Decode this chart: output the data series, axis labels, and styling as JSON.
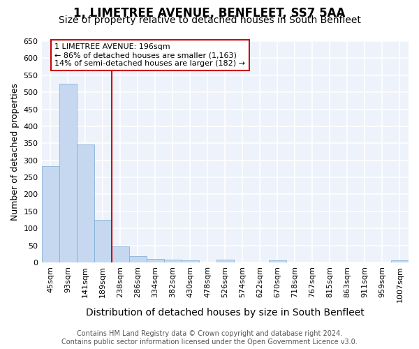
{
  "title1": "1, LIMETREE AVENUE, BENFLEET, SS7 5AA",
  "title2": "Size of property relative to detached houses in South Benfleet",
  "xlabel": "Distribution of detached houses by size in South Benfleet",
  "ylabel": "Number of detached properties",
  "categories": [
    "45sqm",
    "93sqm",
    "141sqm",
    "189sqm",
    "238sqm",
    "286sqm",
    "334sqm",
    "382sqm",
    "430sqm",
    "478sqm",
    "526sqm",
    "574sqm",
    "622sqm",
    "670sqm",
    "718sqm",
    "767sqm",
    "815sqm",
    "863sqm",
    "911sqm",
    "959sqm",
    "1007sqm"
  ],
  "values": [
    283,
    524,
    347,
    124,
    48,
    19,
    10,
    8,
    5,
    0,
    8,
    0,
    0,
    5,
    0,
    0,
    0,
    0,
    0,
    0,
    5
  ],
  "bar_color": "#c5d8f0",
  "bar_edge_color": "#7aaad4",
  "vline_color": "#cc0000",
  "vline_x": 3.5,
  "annotation_line1": "1 LIMETREE AVENUE: 196sqm",
  "annotation_line2": "← 86% of detached houses are smaller (1,163)",
  "annotation_line3": "14% of semi-detached houses are larger (182) →",
  "annotation_box_color": "#ffffff",
  "annotation_box_edge": "#cc0000",
  "ylim": [
    0,
    650
  ],
  "yticks": [
    0,
    50,
    100,
    150,
    200,
    250,
    300,
    350,
    400,
    450,
    500,
    550,
    600,
    650
  ],
  "footer1": "Contains HM Land Registry data © Crown copyright and database right 2024.",
  "footer2": "Contains public sector information licensed under the Open Government Licence v3.0.",
  "bg_color": "#eef2fb",
  "grid_color": "#ffffff",
  "fig_bg_color": "#ffffff",
  "title1_fontsize": 12,
  "title2_fontsize": 10,
  "xlabel_fontsize": 10,
  "ylabel_fontsize": 9,
  "tick_fontsize": 8,
  "annotation_fontsize": 8,
  "footer_fontsize": 7
}
